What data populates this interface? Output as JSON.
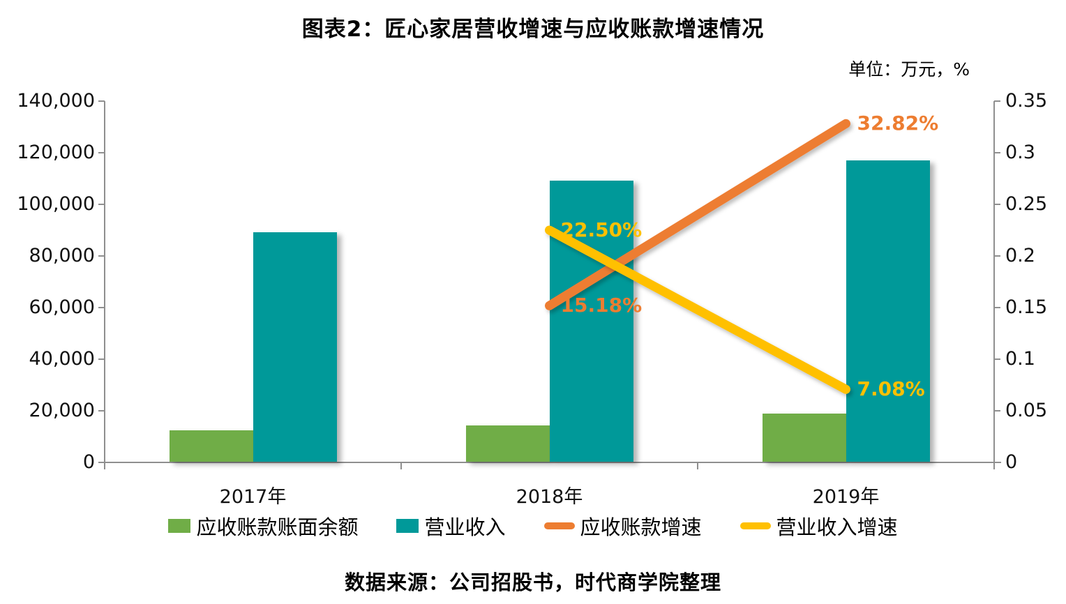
{
  "title": "图表2：匠心家居营收增速与应收账款增速情况",
  "unit_label": "单位：万元，%",
  "source": "数据来源：公司招股书，时代商学院整理",
  "chart_data": {
    "type": "combo-bar-line",
    "categories": [
      "2017年",
      "2018年",
      "2019年"
    ],
    "bar_series": [
      {
        "name": "应收账款账面余额",
        "color": "#70AD47",
        "values": [
          12500,
          14400,
          19000
        ]
      },
      {
        "name": "营业收入",
        "color": "#009999",
        "values": [
          89200,
          109300,
          117000
        ]
      }
    ],
    "line_series": [
      {
        "name": "应收账款增速",
        "color": "#ED7D31",
        "values": [
          null,
          0.1518,
          0.3282
        ],
        "point_labels": [
          null,
          "15.18%",
          "32.82%"
        ]
      },
      {
        "name": "营业收入增速",
        "color": "#FFC000",
        "values": [
          null,
          0.225,
          0.0708
        ],
        "point_labels": [
          null,
          "22.50%",
          "7.08%"
        ]
      }
    ],
    "left_axis": {
      "min": 0,
      "max": 140000,
      "tick_labels": [
        "0",
        "20,000",
        "40,000",
        "60,000",
        "80,000",
        "100,000",
        "120,000",
        "140,000"
      ]
    },
    "right_axis": {
      "min": 0,
      "max": 0.35,
      "tick_labels": [
        "0",
        "0.05",
        "0.1",
        "0.15",
        "0.2",
        "0.25",
        "0.3",
        "0.35"
      ]
    },
    "grid": false,
    "legend_position": "bottom",
    "axis_color": "#8F8F8F"
  }
}
